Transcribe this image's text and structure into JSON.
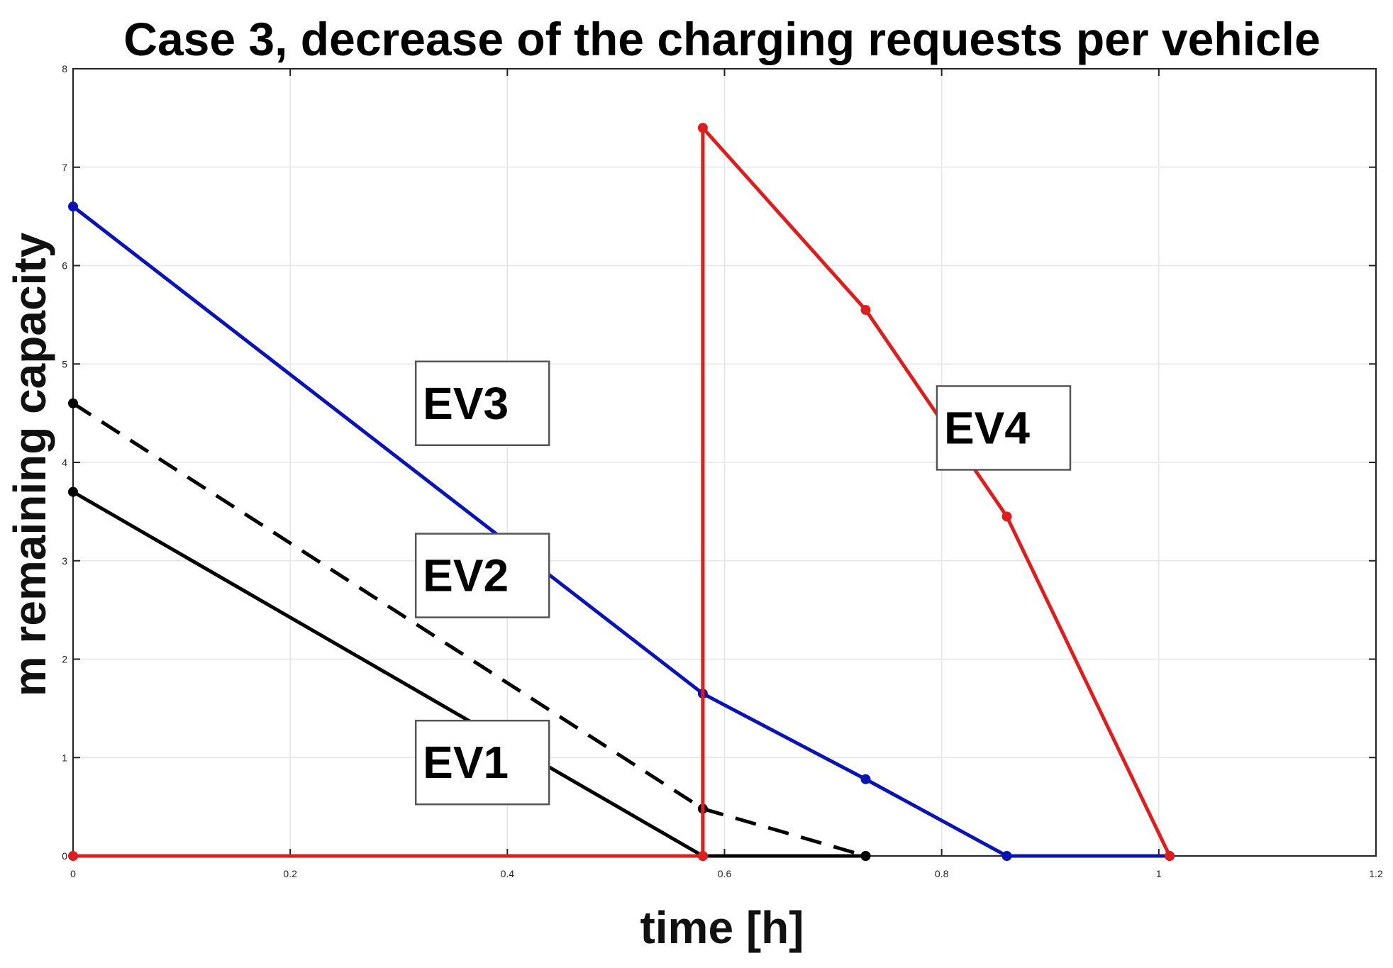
{
  "chart_data": {
    "type": "line",
    "title": "Case 3, decrease of the charging requests per vehicle",
    "xlabel": "time [h]",
    "ylabel": "m remaining  capacity",
    "xlim": [
      0,
      1.2
    ],
    "ylim": [
      0,
      8
    ],
    "x_ticks": [
      "0",
      "0.2",
      "0.4",
      "0.6",
      "0.8",
      "1",
      "1.2"
    ],
    "y_ticks": [
      "0",
      "1",
      "2",
      "3",
      "4",
      "5",
      "6",
      "7",
      "8"
    ],
    "grid": true,
    "series": [
      {
        "name": "EV1",
        "color": "#000000",
        "dash": "solid",
        "x": [
          0,
          0.58,
          0.73
        ],
        "y": [
          3.7,
          0,
          0
        ]
      },
      {
        "name": "EV2",
        "color": "#000000",
        "dash": "dashed",
        "x": [
          0,
          0.58,
          0.73
        ],
        "y": [
          4.6,
          0.48,
          0
        ]
      },
      {
        "name": "EV3",
        "color": "#0a14b4",
        "dash": "solid",
        "x": [
          0,
          0.58,
          0.73,
          0.86,
          1.01
        ],
        "y": [
          6.6,
          1.65,
          0.78,
          0,
          0
        ]
      },
      {
        "name": "EV4",
        "color": "#dc1e1e",
        "dash": "solid",
        "x": [
          0,
          0.58,
          0.58,
          0.73,
          0.86,
          1.01
        ],
        "y": [
          0,
          0,
          7.4,
          5.55,
          3.45,
          0
        ]
      }
    ],
    "annotations": [
      {
        "text": "EV3",
        "x": 0.33,
        "y": 4.6
      },
      {
        "text": "EV2",
        "x": 0.33,
        "y": 2.85
      },
      {
        "text": "EV1",
        "x": 0.33,
        "y": 0.95
      },
      {
        "text": "EV4",
        "x": 0.81,
        "y": 4.35
      }
    ]
  }
}
